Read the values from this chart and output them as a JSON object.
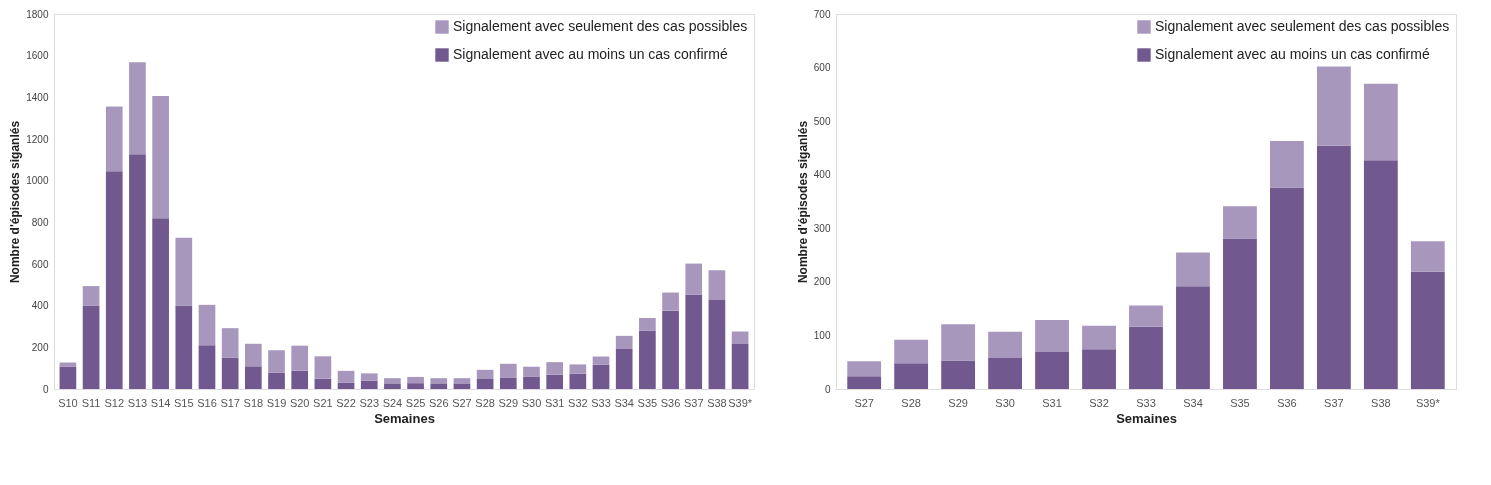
{
  "chart_data": [
    {
      "type": "bar",
      "stacked": true,
      "xlabel": "Semaines",
      "ylabel": "Nombre d'épisodes siganlés",
      "legend": "top right",
      "grid": false,
      "categories": [
        "S10",
        "S11",
        "S12",
        "S13",
        "S14",
        "S15",
        "S16",
        "S17",
        "S18",
        "S19",
        "S20",
        "S21",
        "S22",
        "S23",
        "S24",
        "S25",
        "S26",
        "S27",
        "S28",
        "S29",
        "S30",
        "S31",
        "S32",
        "S33",
        "S34",
        "S35",
        "S36",
        "S37",
        "S38",
        "S39*"
      ],
      "ylim": [
        0,
        1800
      ],
      "yticks": [
        0,
        200,
        400,
        600,
        800,
        1000,
        1200,
        1400,
        1600,
        1800
      ],
      "series": [
        {
          "name": "Signalement avec au moins un cas confirmé",
          "color": "#71588f",
          "values": [
            108,
            401,
            1045,
            1127,
            820,
            401,
            210,
            151,
            109,
            79,
            88,
            49,
            31,
            40,
            27,
            28,
            27,
            24,
            48,
            53,
            58,
            69,
            74,
            116,
            192,
            281,
            376,
            454,
            427,
            219
          ]
        },
        {
          "name": "Signalement avec seulement des cas possibles",
          "color": "#a897bd",
          "values": [
            19,
            93,
            311,
            442,
            587,
            325,
            194,
            141,
            108,
            107,
            120,
            108,
            56,
            35,
            25,
            30,
            25,
            28,
            44,
            68,
            49,
            60,
            44,
            40,
            63,
            60,
            87,
            148,
            143,
            57
          ]
        }
      ]
    },
    {
      "type": "bar",
      "stacked": true,
      "xlabel": "Semaines",
      "ylabel": "Nombre d'épisodes siganlés",
      "legend": "top right",
      "grid": false,
      "categories": [
        "S27",
        "S28",
        "S29",
        "S30",
        "S31",
        "S32",
        "S33",
        "S34",
        "S35",
        "S36",
        "S37",
        "S38",
        "S39*"
      ],
      "ylim": [
        0,
        700
      ],
      "yticks": [
        0,
        100,
        200,
        300,
        400,
        500,
        600,
        700
      ],
      "series": [
        {
          "name": "Signalement avec au moins un cas confirmé",
          "color": "#71588f",
          "values": [
            24,
            48,
            53,
            58,
            69,
            74,
            116,
            192,
            281,
            376,
            454,
            427,
            219
          ]
        },
        {
          "name": "Signalement avec seulement des cas possibles",
          "color": "#a897bd",
          "values": [
            28,
            44,
            68,
            49,
            60,
            44,
            40,
            63,
            60,
            87,
            148,
            143,
            57
          ]
        }
      ]
    }
  ]
}
